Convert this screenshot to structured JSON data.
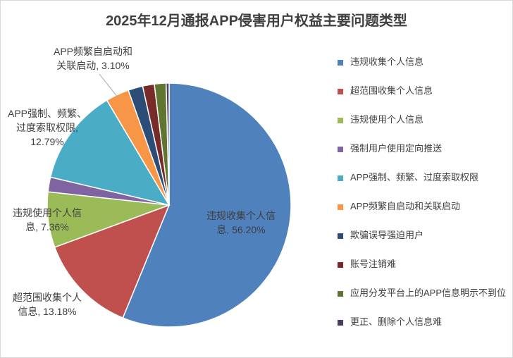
{
  "chart_data": {
    "type": "pie",
    "title": "2025年12月通报APP侵害用户权益主要问题类型",
    "categories": [
      "违规收集个人信息",
      "超范围收集个人信息",
      "违规使用个人信息",
      "强制用户使用定向推送",
      "APP强制、频繁、过度索取权限",
      "APP频繁自启动和关联启动",
      "欺骗误导强迫用户",
      "账号注销难",
      "应用分发平台上的APP信息明示不到位",
      "更正、删除个人信息难"
    ],
    "values": [
      56.2,
      13.18,
      7.36,
      1.94,
      12.79,
      3.1,
      1.94,
      1.55,
      1.55,
      0.39
    ],
    "colors": [
      "#4f81bd",
      "#c0504d",
      "#9bbb59",
      "#8064a2",
      "#4bacc6",
      "#f79646",
      "#2c4d75",
      "#772c2a",
      "#5f7530",
      "#4d3b62"
    ],
    "data_labels": [
      [
        "违规收集个人信",
        "息, 56.20%"
      ],
      [
        "超范围收集个人",
        "信息, 13.18%"
      ],
      [
        "违规使用个人信",
        "息, 7.36%"
      ],
      null,
      [
        "APP强制、频繁、",
        "过度索取权限,",
        "12.79%"
      ],
      [
        "APP频繁自启动和",
        "关联启动, 3.10%"
      ],
      null,
      null,
      null,
      null
    ],
    "legend_position": "right"
  }
}
